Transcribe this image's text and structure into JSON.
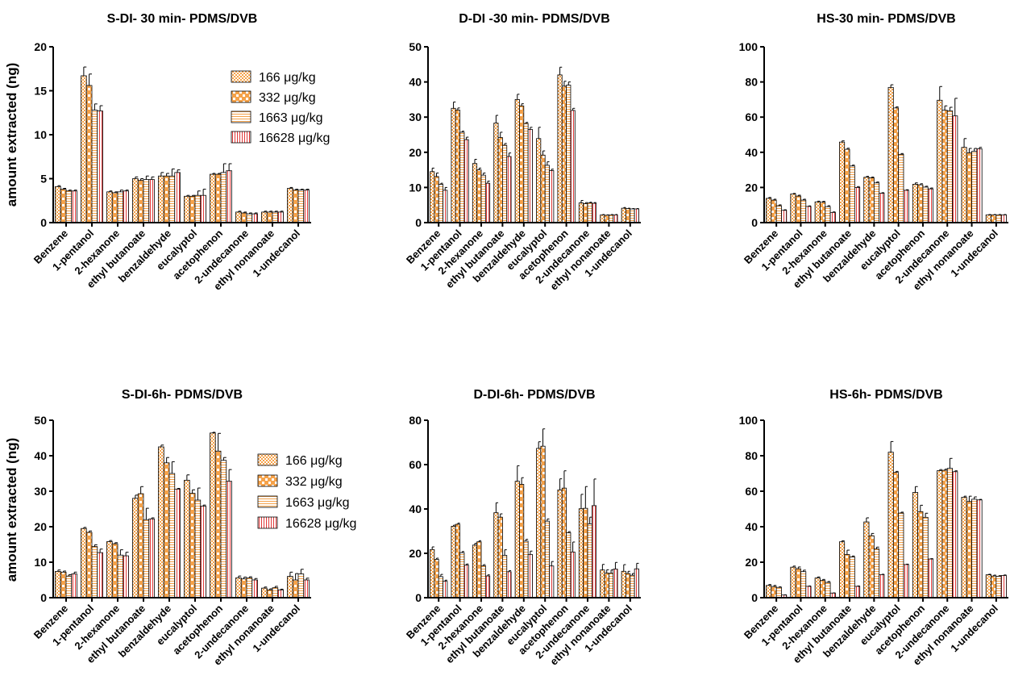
{
  "figure": {
    "ylabel": "amount extracted (ng)",
    "compound_labels": [
      "Benzene",
      "1-pentanol",
      "2-hexanone",
      "ethyl butanoate",
      "benzaldehyde",
      "eucalyptol",
      "acetophenon",
      "2-undecanone",
      "ethyl nonanoate",
      "1-undecanol"
    ],
    "legend": [
      "166 μg/kg",
      "332 μg/kg",
      "1663 μg/kg",
      "16628 μg/kg"
    ]
  },
  "colors": {
    "orange": "#f5a24a",
    "axis": "#000000",
    "white": "#ffffff"
  },
  "chart_data": [
    {
      "type": "bar",
      "title": "S-DI- 30 min- PDMS/DVB",
      "ylabel": "amount extracted (ng)",
      "ylim": [
        0,
        20
      ],
      "yticks": [
        0,
        5,
        10,
        15,
        20
      ],
      "categories": [
        "Benzene",
        "1-pentanol",
        "2-hexanone",
        "ethyl butanoate",
        "benzaldehyde",
        "eucalyptol",
        "acetophenon",
        "2-undecanone",
        "ethyl nonanoate",
        "1-undecanol"
      ],
      "legend_placement": "top-right",
      "series": [
        {
          "name": "166 μg/kg",
          "values": [
            4.1,
            16.7,
            3.5,
            5.0,
            5.3,
            3.0,
            5.5,
            1.2,
            1.2,
            3.9
          ],
          "errors": [
            0.1,
            1.0,
            0.1,
            0.2,
            0.4,
            0.1,
            0.1,
            0.1,
            0.1,
            0.1
          ]
        },
        {
          "name": "332 μg/kg",
          "values": [
            3.8,
            15.6,
            3.4,
            4.8,
            5.3,
            3.0,
            5.5,
            1.1,
            1.2,
            3.7
          ],
          "errors": [
            0.1,
            1.3,
            0.1,
            0.2,
            0.3,
            0.1,
            0.1,
            0.1,
            0.1,
            0.1
          ]
        },
        {
          "name": "1663 μg/kg",
          "values": [
            3.6,
            12.8,
            3.5,
            4.9,
            5.3,
            3.1,
            5.7,
            1.0,
            1.2,
            3.7
          ],
          "errors": [
            0.1,
            0.7,
            0.2,
            0.4,
            0.8,
            0.5,
            1.0,
            0.1,
            0.1,
            0.1
          ]
        },
        {
          "name": "16628 μg/kg",
          "values": [
            3.6,
            12.7,
            3.6,
            4.9,
            5.7,
            3.1,
            5.9,
            1.0,
            1.2,
            3.7
          ],
          "errors": [
            0.1,
            0.6,
            0.1,
            0.3,
            0.3,
            0.7,
            0.8,
            0.1,
            0.1,
            0.1
          ]
        }
      ]
    },
    {
      "type": "bar",
      "title": "D-DI -30 min- PDMS/DVB",
      "ylim": [
        0,
        50
      ],
      "yticks": [
        0,
        10,
        20,
        30,
        40,
        50
      ],
      "categories": [
        "Benzene",
        "1-pentanol",
        "2-hexanone",
        "ethyl butanoate",
        "benzaldehyde",
        "eucalyptol",
        "acetophenon",
        "2-undecanone",
        "ethyl nonanoate",
        "1-undecanol"
      ],
      "series": [
        {
          "name": "166 μg/kg",
          "values": [
            14.5,
            32.5,
            16.8,
            28.3,
            35.0,
            23.9,
            42.0,
            5.6,
            2.2,
            4.1
          ],
          "errors": [
            1.0,
            1.8,
            1.2,
            2.2,
            1.5,
            3.2,
            2.2,
            0.7,
            0.1,
            0.2
          ]
        },
        {
          "name": "332 μg/kg",
          "values": [
            13.1,
            32.0,
            15.0,
            24.2,
            33.2,
            19.2,
            38.8,
            5.4,
            2.1,
            4.0
          ],
          "errors": [
            1.0,
            0.6,
            0.5,
            1.5,
            0.6,
            1.2,
            1.4,
            0.3,
            0.1,
            0.1
          ]
        },
        {
          "name": "1663 μg/kg",
          "values": [
            10.9,
            25.7,
            13.5,
            22.0,
            28.2,
            16.3,
            39.1,
            5.6,
            2.2,
            3.9
          ],
          "errors": [
            0.3,
            0.3,
            0.6,
            0.5,
            0.3,
            1.0,
            0.9,
            0.2,
            0.1,
            0.1
          ]
        },
        {
          "name": "16628 μg/kg",
          "values": [
            9.2,
            23.6,
            11.2,
            18.8,
            26.5,
            14.8,
            31.9,
            5.5,
            2.2,
            3.9
          ],
          "errors": [
            0.8,
            0.7,
            0.6,
            1.0,
            0.6,
            0.4,
            0.6,
            0.2,
            0.1,
            0.1
          ]
        }
      ]
    },
    {
      "type": "bar",
      "title": "HS-30 min- PDMS/DVB",
      "ylim": [
        0,
        100
      ],
      "yticks": [
        0,
        20,
        40,
        60,
        80,
        100
      ],
      "categories": [
        "Benzene",
        "1-pentanol",
        "2-hexanone",
        "ethyl butanoate",
        "benzaldehyde",
        "eucalyptol",
        "acetophenon",
        "2-undecanone",
        "ethyl nonanoate",
        "1-undecanol"
      ],
      "series": [
        {
          "name": "166 μg/kg",
          "values": [
            13.8,
            16.3,
            11.8,
            45.8,
            25.8,
            76.9,
            21.8,
            69.6,
            42.8,
            4.4
          ],
          "errors": [
            0.5,
            0.3,
            0.4,
            0.7,
            0.5,
            1.5,
            0.8,
            7.8,
            5.0,
            0.2
          ]
        },
        {
          "name": "332 μg/kg",
          "values": [
            12.8,
            15.1,
            11.6,
            41.7,
            25.5,
            65.2,
            21.5,
            63.9,
            39.7,
            4.4
          ],
          "errors": [
            0.5,
            0.5,
            0.5,
            0.6,
            0.4,
            0.6,
            0.6,
            2.5,
            2.5,
            0.2
          ]
        },
        {
          "name": "1663 μg/kg",
          "values": [
            9.6,
            12.8,
            9.1,
            32.2,
            22.6,
            38.8,
            20.2,
            63.6,
            40.6,
            4.4
          ],
          "errors": [
            0.5,
            0.5,
            0.5,
            0.5,
            0.5,
            0.5,
            0.5,
            2.0,
            1.6,
            0.2
          ]
        },
        {
          "name": "16628 μg/kg",
          "values": [
            7.0,
            9.2,
            5.8,
            20.0,
            16.7,
            18.4,
            19.2,
            60.7,
            42.0,
            4.4
          ],
          "errors": [
            0.3,
            0.3,
            0.3,
            0.5,
            0.3,
            0.3,
            0.5,
            10.0,
            0.8,
            0.2
          ]
        }
      ]
    },
    {
      "type": "bar",
      "title": "S-DI-6h- PDMS/DVB",
      "ylabel": "amount extracted (ng)",
      "ylim": [
        0,
        50
      ],
      "yticks": [
        0,
        10,
        20,
        30,
        40,
        50
      ],
      "categories": [
        "Benzene",
        "1-pentanol",
        "2-hexanone",
        "ethyl butanoate",
        "benzaldehyde",
        "eucalyptol",
        "acetophenon",
        "2-undecanone",
        "ethyl nonanoate",
        "1-undecanol"
      ],
      "legend_placement": "top-right",
      "series": [
        {
          "name": "166 μg/kg",
          "values": [
            7.4,
            19.5,
            15.8,
            28.0,
            42.5,
            33.1,
            46.4,
            5.6,
            2.7,
            6.0
          ],
          "errors": [
            0.4,
            0.3,
            0.3,
            0.9,
            0.5,
            1.5,
            0.2,
            0.5,
            0.3,
            1.2
          ]
        },
        {
          "name": "332 μg/kg",
          "values": [
            7.2,
            18.4,
            15.2,
            29.3,
            38.0,
            29.4,
            41.3,
            5.3,
            2.2,
            5.0
          ],
          "errors": [
            0.3,
            0.4,
            0.3,
            2.0,
            1.5,
            1.0,
            5.0,
            0.5,
            0.3,
            1.8
          ]
        },
        {
          "name": "1663 μg/kg",
          "values": [
            6.1,
            14.4,
            12.0,
            22.0,
            35.0,
            27.5,
            38.7,
            5.6,
            2.8,
            6.7
          ],
          "errors": [
            0.4,
            0.5,
            1.5,
            3.2,
            3.3,
            3.4,
            0.8,
            0.3,
            0.4,
            1.3
          ]
        },
        {
          "name": "16628 μg/kg",
          "values": [
            6.7,
            12.7,
            11.8,
            22.2,
            30.6,
            25.8,
            32.8,
            5.0,
            2.2,
            5.0
          ],
          "errors": [
            0.5,
            1.0,
            1.0,
            0.3,
            0.2,
            0.3,
            3.3,
            0.4,
            0.2,
            0.5
          ]
        }
      ]
    },
    {
      "type": "bar",
      "title": "D-DI-6h- PDMS/DVB",
      "ylim": [
        0,
        80
      ],
      "yticks": [
        0,
        20,
        40,
        60,
        80
      ],
      "categories": [
        "Benzene",
        "1-pentanol",
        "2-hexanone",
        "ethyl butanoate",
        "benzaldehyde",
        "eucalyptol",
        "acetophenon",
        "2-undecanone",
        "ethyl nonanoate",
        "1-undecanol"
      ],
      "series": [
        {
          "name": "166 μg/kg",
          "values": [
            21.7,
            32.2,
            23.7,
            38.3,
            52.5,
            67.3,
            48.6,
            40.1,
            12.5,
            11.9
          ],
          "errors": [
            1.2,
            0.5,
            0.8,
            4.5,
            7.0,
            3.0,
            5.0,
            6.5,
            2.5,
            3.0
          ]
        },
        {
          "name": "332 μg/kg",
          "values": [
            17.3,
            33.1,
            25.2,
            36.3,
            51.1,
            68.3,
            49.4,
            40.3,
            11.1,
            10.9
          ],
          "errors": [
            0.5,
            0.5,
            0.5,
            1.5,
            3.0,
            7.8,
            7.8,
            9.8,
            1.5,
            1.0
          ]
        },
        {
          "name": "1663 μg/kg",
          "values": [
            9.5,
            20.3,
            14.4,
            19.1,
            25.5,
            34.5,
            29.3,
            33.3,
            11.0,
            10.1
          ],
          "errors": [
            1.0,
            0.5,
            0.5,
            2.5,
            0.8,
            1.0,
            0.5,
            3.0,
            1.5,
            0.8
          ]
        },
        {
          "name": "16628 μg/kg",
          "values": [
            7.4,
            14.7,
            9.8,
            11.7,
            19.5,
            14.3,
            20.6,
            41.5,
            12.9,
            13.0
          ],
          "errors": [
            0.5,
            0.5,
            0.5,
            0.5,
            1.5,
            2.0,
            4.5,
            12.0,
            3.0,
            2.5
          ]
        }
      ]
    },
    {
      "type": "bar",
      "title": "HS-6h- PDMS/DVB",
      "ylim": [
        0,
        100
      ],
      "yticks": [
        0,
        20,
        40,
        60,
        80,
        100
      ],
      "categories": [
        "Benzene",
        "1-pentanol",
        "2-hexanone",
        "ethyl butanoate",
        "benzaldehyde",
        "eucalyptol",
        "acetophenon",
        "2-undecanone",
        "ethyl nonanoate",
        "1-undecanol"
      ],
      "series": [
        {
          "name": "166 μg/kg",
          "values": [
            6.9,
            17.2,
            11.1,
            31.5,
            42.7,
            82.0,
            59.3,
            71.6,
            56.6,
            12.9
          ],
          "errors": [
            0.5,
            0.6,
            0.6,
            0.6,
            2.3,
            6.0,
            3.3,
            0.6,
            0.6,
            0.3
          ]
        },
        {
          "name": "332 μg/kg",
          "values": [
            6.3,
            16.3,
            9.7,
            24.3,
            34.9,
            70.6,
            48.5,
            71.8,
            54.2,
            12.2
          ],
          "errors": [
            0.6,
            1.0,
            0.6,
            2.5,
            1.3,
            0.6,
            3.6,
            0.6,
            3.0,
            0.5
          ]
        },
        {
          "name": "1663 μg/kg",
          "values": [
            5.8,
            14.7,
            8.6,
            23.0,
            27.5,
            47.7,
            45.3,
            72.9,
            55.5,
            12.1
          ],
          "errors": [
            0.3,
            0.8,
            0.5,
            0.5,
            1.0,
            0.5,
            2.3,
            5.6,
            1.3,
            0.3
          ]
        },
        {
          "name": "16628 μg/kg",
          "values": [
            1.5,
            6.4,
            2.6,
            6.4,
            13.0,
            18.7,
            21.8,
            71.0,
            55.1,
            12.5
          ],
          "errors": [
            0.1,
            0.2,
            0.1,
            0.2,
            0.2,
            0.2,
            0.2,
            0.5,
            0.3,
            0.3
          ]
        }
      ]
    }
  ]
}
